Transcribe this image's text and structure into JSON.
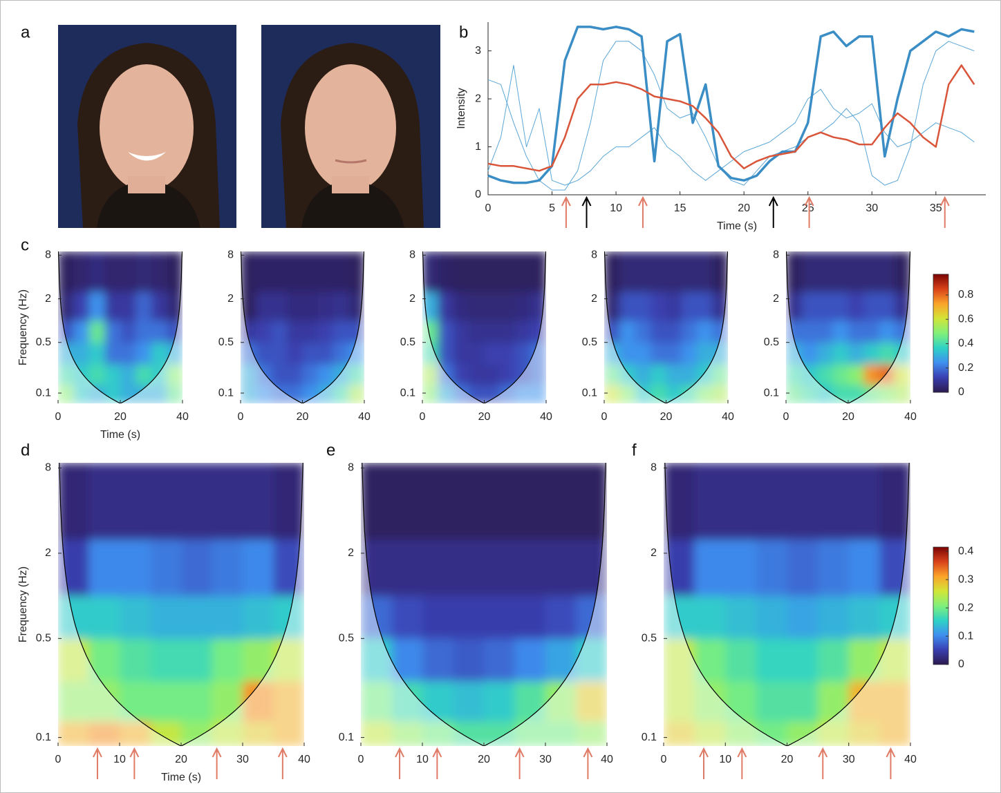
{
  "panel_labels": [
    "a",
    "b",
    "c",
    "d",
    "e",
    "f"
  ],
  "colormap": [
    "#2b1a4e",
    "#3a3fb0",
    "#3e8ff0",
    "#2fd2c6",
    "#80f07a",
    "#d2e538",
    "#fba42a",
    "#d8421a",
    "#7a0403"
  ],
  "chart_data": [
    {
      "type": "line",
      "xlabel": "Time (s)",
      "ylabel": "Intensity",
      "x": [
        0,
        1,
        2,
        3,
        4,
        5,
        6,
        7,
        8,
        9,
        10,
        11,
        12,
        13,
        14,
        15,
        16,
        17,
        18,
        19,
        20,
        21,
        22,
        23,
        24,
        25,
        26,
        27,
        28,
        29,
        30,
        31,
        32,
        33,
        34,
        35,
        36,
        37,
        38
      ],
      "xlim": [
        0,
        38.9
      ],
      "xticks": [
        0,
        5,
        10,
        15,
        20,
        25,
        30,
        35
      ],
      "ylim": [
        0,
        3.6
      ],
      "yticks": [
        0,
        1,
        2,
        3
      ],
      "series": [
        {
          "color": "#5aa6d6",
          "linewidth": 1,
          "values": [
            2.4,
            2.3,
            1.5,
            0.8,
            0.3,
            0.1,
            0.1,
            0.5,
            1.5,
            2.8,
            3.2,
            3.2,
            3.0,
            2.5,
            1.8,
            1.6,
            1.7,
            1.2,
            0.6,
            0.3,
            0.2,
            0.5,
            0.8,
            0.9,
            1.0,
            1.2,
            1.3,
            1.5,
            1.8,
            1.5,
            0.4,
            0.2,
            0.3,
            1.0,
            2.3,
            3.0,
            3.2,
            3.1,
            3.0
          ]
        },
        {
          "color": "#5aa6d6",
          "linewidth": 1,
          "values": [
            0.5,
            1.2,
            2.7,
            1.0,
            1.8,
            0.3,
            0.2,
            0.3,
            0.5,
            0.8,
            1.0,
            1.0,
            1.2,
            1.4,
            1.0,
            0.8,
            0.5,
            0.3,
            0.5,
            0.7,
            0.9,
            1.0,
            1.1,
            1.3,
            1.5,
            2.0,
            2.2,
            1.8,
            1.6,
            1.7,
            1.9,
            1.3,
            1.0,
            1.1,
            1.3,
            1.5,
            1.4,
            1.3,
            1.1
          ]
        },
        {
          "color": "#3a8dc5",
          "linewidth": 3.5,
          "values": [
            0.4,
            0.3,
            0.25,
            0.25,
            0.3,
            0.6,
            2.8,
            3.5,
            3.5,
            3.45,
            3.5,
            3.45,
            3.3,
            0.7,
            3.2,
            3.35,
            1.5,
            2.3,
            0.6,
            0.35,
            0.3,
            0.4,
            0.7,
            0.9,
            0.9,
            1.5,
            3.3,
            3.4,
            3.1,
            3.3,
            3.3,
            0.8,
            2.0,
            3.0,
            3.2,
            3.4,
            3.3,
            3.45,
            3.4
          ]
        },
        {
          "color": "#d9553a",
          "linewidth": 2.5,
          "values": [
            0.65,
            0.6,
            0.6,
            0.55,
            0.5,
            0.6,
            1.2,
            2.0,
            2.3,
            2.3,
            2.35,
            2.3,
            2.2,
            2.05,
            2.0,
            1.95,
            1.85,
            1.6,
            1.3,
            0.8,
            0.55,
            0.7,
            0.8,
            0.85,
            0.9,
            1.2,
            1.3,
            1.2,
            1.15,
            1.05,
            1.05,
            1.4,
            1.7,
            1.5,
            1.2,
            1.0,
            2.3,
            2.7,
            2.3
          ]
        }
      ],
      "arrows": [
        {
          "x": 6.1,
          "color": "#e07b66"
        },
        {
          "x": 7.7,
          "color": "#000000"
        },
        {
          "x": 12.1,
          "color": "#e07b66"
        },
        {
          "x": 22.3,
          "color": "#000000"
        },
        {
          "x": 25.1,
          "color": "#e07b66"
        },
        {
          "x": 35.7,
          "color": "#e07b66"
        }
      ]
    },
    {
      "type": "heatmap",
      "xlabel": "Time (s)",
      "ylabel": "Frequency (Hz)",
      "log_y": true,
      "xlim": [
        0,
        40
      ],
      "xticks": [
        0,
        20,
        40
      ],
      "ylim": [
        0.072,
        9
      ],
      "yticks": [
        0.1,
        0.5,
        2,
        8
      ],
      "zlim": [
        0,
        0.97
      ],
      "xbins": [
        0,
        5,
        10,
        15,
        20,
        25,
        30,
        35,
        40
      ],
      "ybins": [
        0.072,
        0.13,
        0.25,
        0.5,
        1,
        2.5,
        9
      ],
      "z": [
        [
          0.5,
          0.35,
          0.3,
          0.35,
          0.3,
          0.3,
          0.3,
          0.45
        ],
        [
          0.4,
          0.35,
          0.4,
          0.35,
          0.3,
          0.4,
          0.35,
          0.5
        ],
        [
          0.3,
          0.3,
          0.35,
          0.2,
          0.2,
          0.25,
          0.35,
          0.3
        ],
        [
          0.15,
          0.25,
          0.45,
          0.2,
          0.15,
          0.2,
          0.2,
          0.15
        ],
        [
          0.05,
          0.12,
          0.25,
          0.1,
          0.1,
          0.18,
          0.1,
          0.05
        ],
        [
          0.02,
          0.04,
          0.06,
          0.04,
          0.04,
          0.05,
          0.04,
          0.02
        ]
      ]
    },
    {
      "type": "heatmap",
      "log_y": true,
      "xlim": [
        0,
        40
      ],
      "xticks": [
        0,
        20,
        40
      ],
      "ylim": [
        0.072,
        9
      ],
      "yticks": [
        0.1,
        0.5,
        2,
        8
      ],
      "zlim": [
        0,
        0.97
      ],
      "xbins": [
        0,
        5,
        10,
        15,
        20,
        25,
        30,
        35,
        40
      ],
      "ybins": [
        0.072,
        0.13,
        0.25,
        0.5,
        1,
        2.5,
        9
      ],
      "z": [
        [
          0.3,
          0.25,
          0.2,
          0.2,
          0.25,
          0.3,
          0.4,
          0.55
        ],
        [
          0.3,
          0.2,
          0.15,
          0.15,
          0.2,
          0.25,
          0.3,
          0.4
        ],
        [
          0.2,
          0.15,
          0.15,
          0.12,
          0.15,
          0.15,
          0.2,
          0.25
        ],
        [
          0.1,
          0.12,
          0.15,
          0.1,
          0.1,
          0.12,
          0.15,
          0.15
        ],
        [
          0.02,
          0.08,
          0.08,
          0.06,
          0.06,
          0.07,
          0.08,
          0.05
        ],
        [
          0.02,
          0.03,
          0.03,
          0.03,
          0.03,
          0.03,
          0.03,
          0.02
        ]
      ]
    },
    {
      "type": "heatmap",
      "log_y": true,
      "xlim": [
        0,
        40
      ],
      "xticks": [
        0,
        20,
        40
      ],
      "ylim": [
        0.072,
        9
      ],
      "yticks": [
        0.1,
        0.5,
        2,
        8
      ],
      "zlim": [
        0,
        0.97
      ],
      "xbins": [
        0,
        5,
        10,
        15,
        20,
        25,
        30,
        35,
        40
      ],
      "ybins": [
        0.072,
        0.13,
        0.25,
        0.5,
        1,
        2.5,
        9
      ],
      "z": [
        [
          0.5,
          0.3,
          0.2,
          0.15,
          0.15,
          0.2,
          0.25,
          0.25
        ],
        [
          0.55,
          0.2,
          0.12,
          0.1,
          0.1,
          0.12,
          0.15,
          0.2
        ],
        [
          0.4,
          0.15,
          0.1,
          0.1,
          0.12,
          0.12,
          0.15,
          0.2
        ],
        [
          0.45,
          0.15,
          0.1,
          0.08,
          0.08,
          0.08,
          0.1,
          0.12
        ],
        [
          0.3,
          0.1,
          0.06,
          0.05,
          0.05,
          0.05,
          0.06,
          0.08
        ],
        [
          0.05,
          0.03,
          0.02,
          0.02,
          0.02,
          0.02,
          0.02,
          0.02
        ]
      ]
    },
    {
      "type": "heatmap",
      "log_y": true,
      "xlim": [
        0,
        40
      ],
      "xticks": [
        0,
        20,
        40
      ],
      "ylim": [
        0.072,
        9
      ],
      "yticks": [
        0.1,
        0.5,
        2,
        8
      ],
      "zlim": [
        0,
        0.97
      ],
      "xbins": [
        0,
        5,
        10,
        15,
        20,
        25,
        30,
        35,
        40
      ],
      "ybins": [
        0.072,
        0.13,
        0.25,
        0.5,
        1,
        2.5,
        9
      ],
      "z": [
        [
          0.6,
          0.5,
          0.35,
          0.4,
          0.35,
          0.4,
          0.5,
          0.55
        ],
        [
          0.45,
          0.35,
          0.3,
          0.35,
          0.3,
          0.3,
          0.35,
          0.45
        ],
        [
          0.3,
          0.25,
          0.25,
          0.2,
          0.2,
          0.25,
          0.3,
          0.3
        ],
        [
          0.15,
          0.25,
          0.2,
          0.15,
          0.15,
          0.2,
          0.25,
          0.2
        ],
        [
          0.05,
          0.15,
          0.15,
          0.12,
          0.1,
          0.15,
          0.15,
          0.08
        ],
        [
          0.02,
          0.05,
          0.05,
          0.05,
          0.05,
          0.05,
          0.05,
          0.02
        ]
      ]
    },
    {
      "type": "heatmap",
      "log_y": true,
      "xlim": [
        0,
        40
      ],
      "xticks": [
        0,
        20,
        40
      ],
      "ylim": [
        0.072,
        9
      ],
      "yticks": [
        0.1,
        0.5,
        2,
        8
      ],
      "zlim": [
        0,
        0.97
      ],
      "zticks": [
        0,
        0.2,
        0.4,
        0.6,
        0.8
      ],
      "xbins": [
        0,
        5,
        10,
        15,
        20,
        25,
        30,
        35,
        40
      ],
      "ybins": [
        0.072,
        0.13,
        0.25,
        0.5,
        1,
        2.5,
        9
      ],
      "z": [
        [
          0.45,
          0.4,
          0.35,
          0.4,
          0.4,
          0.45,
          0.5,
          0.55
        ],
        [
          0.4,
          0.35,
          0.4,
          0.45,
          0.5,
          0.75,
          0.8,
          0.6
        ],
        [
          0.3,
          0.25,
          0.3,
          0.35,
          0.3,
          0.35,
          0.4,
          0.35
        ],
        [
          0.2,
          0.2,
          0.2,
          0.25,
          0.2,
          0.2,
          0.25,
          0.2
        ],
        [
          0.08,
          0.15,
          0.15,
          0.15,
          0.12,
          0.15,
          0.15,
          0.08
        ],
        [
          0.02,
          0.05,
          0.05,
          0.05,
          0.05,
          0.05,
          0.05,
          0.02
        ]
      ]
    },
    {
      "type": "heatmap",
      "xlabel": "Time (s)",
      "ylabel": "Frequency (Hz)",
      "log_y": true,
      "xlim": [
        0,
        40
      ],
      "xticks": [
        0,
        10,
        20,
        30,
        40
      ],
      "ylim": [
        0.087,
        8.7
      ],
      "yticks": [
        0.1,
        0.5,
        2,
        8
      ],
      "zlim": [
        0,
        0.415
      ],
      "xbins": [
        0,
        5,
        10,
        15,
        20,
        25,
        30,
        35,
        40
      ],
      "ybins": [
        0.087,
        0.13,
        0.25,
        0.5,
        1,
        2.5,
        8.7
      ],
      "z": [
        [
          0.3,
          0.32,
          0.3,
          0.25,
          0.22,
          0.25,
          0.28,
          0.3
        ],
        [
          0.22,
          0.22,
          0.2,
          0.2,
          0.2,
          0.22,
          0.32,
          0.3
        ],
        [
          0.25,
          0.2,
          0.18,
          0.17,
          0.17,
          0.2,
          0.22,
          0.25
        ],
        [
          0.15,
          0.15,
          0.14,
          0.13,
          0.13,
          0.13,
          0.14,
          0.15
        ],
        [
          0.05,
          0.1,
          0.1,
          0.09,
          0.08,
          0.09,
          0.1,
          0.06
        ],
        [
          0.02,
          0.03,
          0.03,
          0.03,
          0.03,
          0.03,
          0.03,
          0.02
        ]
      ],
      "arrows": [
        {
          "x": 6.4,
          "color": "#e07b66"
        },
        {
          "x": 12.4,
          "color": "#e07b66"
        },
        {
          "x": 25.8,
          "color": "#e07b66"
        },
        {
          "x": 36.5,
          "color": "#e07b66"
        }
      ]
    },
    {
      "type": "heatmap",
      "log_y": true,
      "xlim": [
        0,
        40
      ],
      "xticks": [
        0,
        10,
        20,
        30,
        40
      ],
      "ylim": [
        0.087,
        8.7
      ],
      "yticks": [
        0.1,
        0.5,
        2,
        8
      ],
      "zlim": [
        0,
        0.415
      ],
      "xbins": [
        0,
        5,
        10,
        15,
        20,
        25,
        30,
        35,
        40
      ],
      "ybins": [
        0.087,
        0.13,
        0.25,
        0.5,
        1,
        2.5,
        8.7
      ],
      "z": [
        [
          0.25,
          0.22,
          0.2,
          0.18,
          0.18,
          0.2,
          0.2,
          0.22
        ],
        [
          0.2,
          0.17,
          0.15,
          0.14,
          0.15,
          0.18,
          0.22,
          0.28
        ],
        [
          0.15,
          0.1,
          0.08,
          0.07,
          0.08,
          0.1,
          0.12,
          0.15
        ],
        [
          0.08,
          0.06,
          0.05,
          0.05,
          0.05,
          0.05,
          0.06,
          0.08
        ],
        [
          0.03,
          0.03,
          0.03,
          0.03,
          0.03,
          0.03,
          0.03,
          0.03
        ],
        [
          0.01,
          0.01,
          0.01,
          0.01,
          0.01,
          0.01,
          0.01,
          0.01
        ]
      ],
      "arrows": [
        {
          "x": 6.3,
          "color": "#e07b66"
        },
        {
          "x": 12.4,
          "color": "#e07b66"
        },
        {
          "x": 25.8,
          "color": "#e07b66"
        },
        {
          "x": 36.9,
          "color": "#e07b66"
        }
      ]
    },
    {
      "type": "heatmap",
      "log_y": true,
      "xlim": [
        0,
        40
      ],
      "xticks": [
        0,
        10,
        20,
        30,
        40
      ],
      "ylim": [
        0.087,
        8.7
      ],
      "yticks": [
        0.1,
        0.5,
        2,
        8
      ],
      "zlim": [
        0,
        0.415
      ],
      "zticks": [
        0,
        0.1,
        0.2,
        0.3,
        0.4
      ],
      "xbins": [
        0,
        5,
        10,
        15,
        20,
        25,
        30,
        35,
        40
      ],
      "ybins": [
        0.087,
        0.13,
        0.25,
        0.5,
        1,
        2.5,
        8.7
      ],
      "z": [
        [
          0.28,
          0.25,
          0.22,
          0.2,
          0.22,
          0.25,
          0.28,
          0.3
        ],
        [
          0.25,
          0.22,
          0.2,
          0.18,
          0.18,
          0.22,
          0.3,
          0.3
        ],
        [
          0.25,
          0.2,
          0.18,
          0.16,
          0.16,
          0.18,
          0.22,
          0.25
        ],
        [
          0.15,
          0.15,
          0.14,
          0.13,
          0.12,
          0.13,
          0.14,
          0.15
        ],
        [
          0.05,
          0.1,
          0.1,
          0.09,
          0.08,
          0.09,
          0.1,
          0.06
        ],
        [
          0.02,
          0.03,
          0.03,
          0.03,
          0.03,
          0.03,
          0.03,
          0.02
        ]
      ],
      "arrows": [
        {
          "x": 6.5,
          "color": "#e07b66"
        },
        {
          "x": 12.7,
          "color": "#e07b66"
        },
        {
          "x": 25.8,
          "color": "#e07b66"
        },
        {
          "x": 36.8,
          "color": "#e07b66"
        }
      ]
    }
  ]
}
